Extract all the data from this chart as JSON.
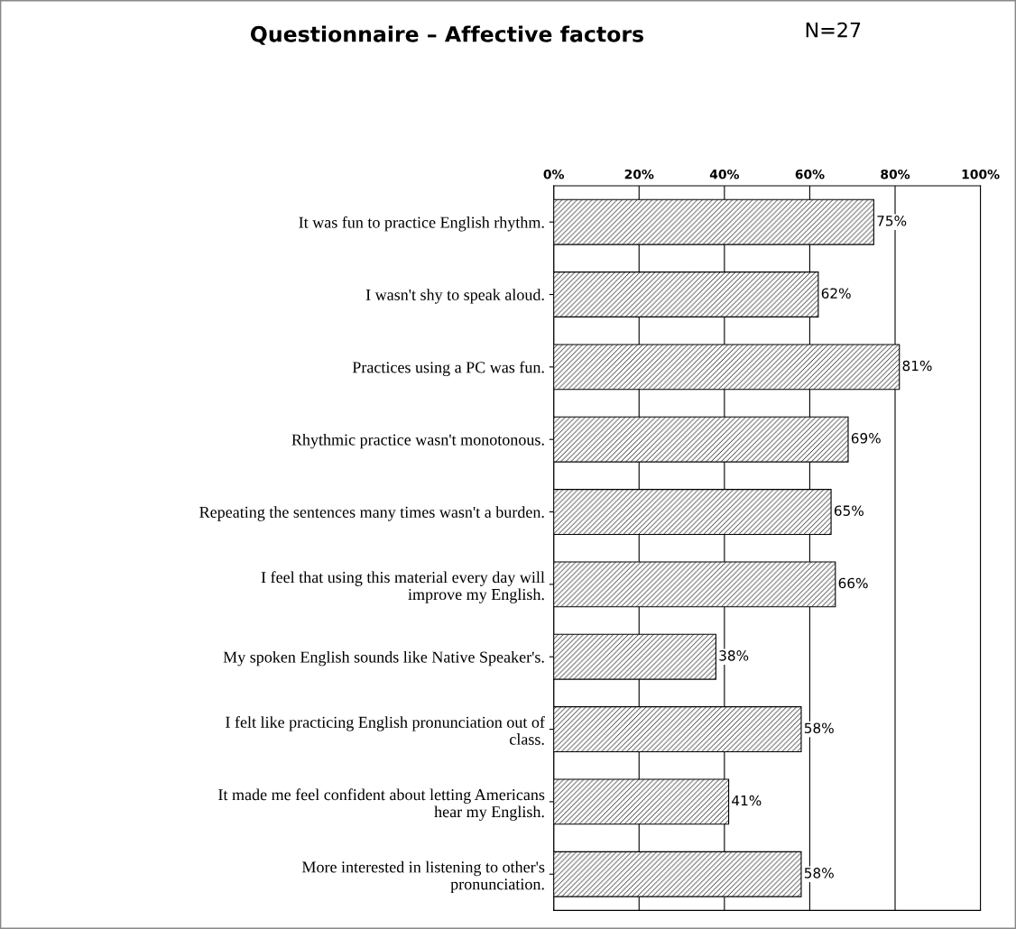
{
  "chart_data": {
    "type": "bar",
    "orientation": "horizontal",
    "title": "Questionnaire – Affective factors",
    "annotations": [
      "N=27"
    ],
    "categories": [
      "It was fun to practice English rhythm.",
      "I wasn't shy to speak aloud.",
      "Practices using a PC was fun.",
      "Rhythmic practice wasn't monotonous.",
      "Repeating the sentences many times wasn't a burden.",
      "I feel that using this material every day will improve my English.",
      "My spoken English sounds like Native Speaker's.",
      "I felt like practicing English pronunciation out of class.",
      "It made me feel confident about letting Americans hear my English.",
      "More interested in listening to other's pronunciation."
    ],
    "values": [
      75,
      62,
      81,
      69,
      65,
      66,
      38,
      58,
      41,
      58
    ],
    "value_labels": [
      "75%",
      "62%",
      "81%",
      "69%",
      "65%",
      "66%",
      "38%",
      "58%",
      "41%",
      "58%"
    ],
    "color": "#000000",
    "xlim": [
      0,
      100
    ],
    "xticks": [
      {
        "value": 0,
        "label": "0%"
      },
      {
        "value": 20,
        "label": "20%"
      },
      {
        "value": 40,
        "label": "40%"
      },
      {
        "value": 60,
        "label": "60%"
      },
      {
        "value": 80,
        "label": "80%"
      },
      {
        "value": 100,
        "label": "100%"
      }
    ],
    "grid": "x",
    "legend": false
  }
}
